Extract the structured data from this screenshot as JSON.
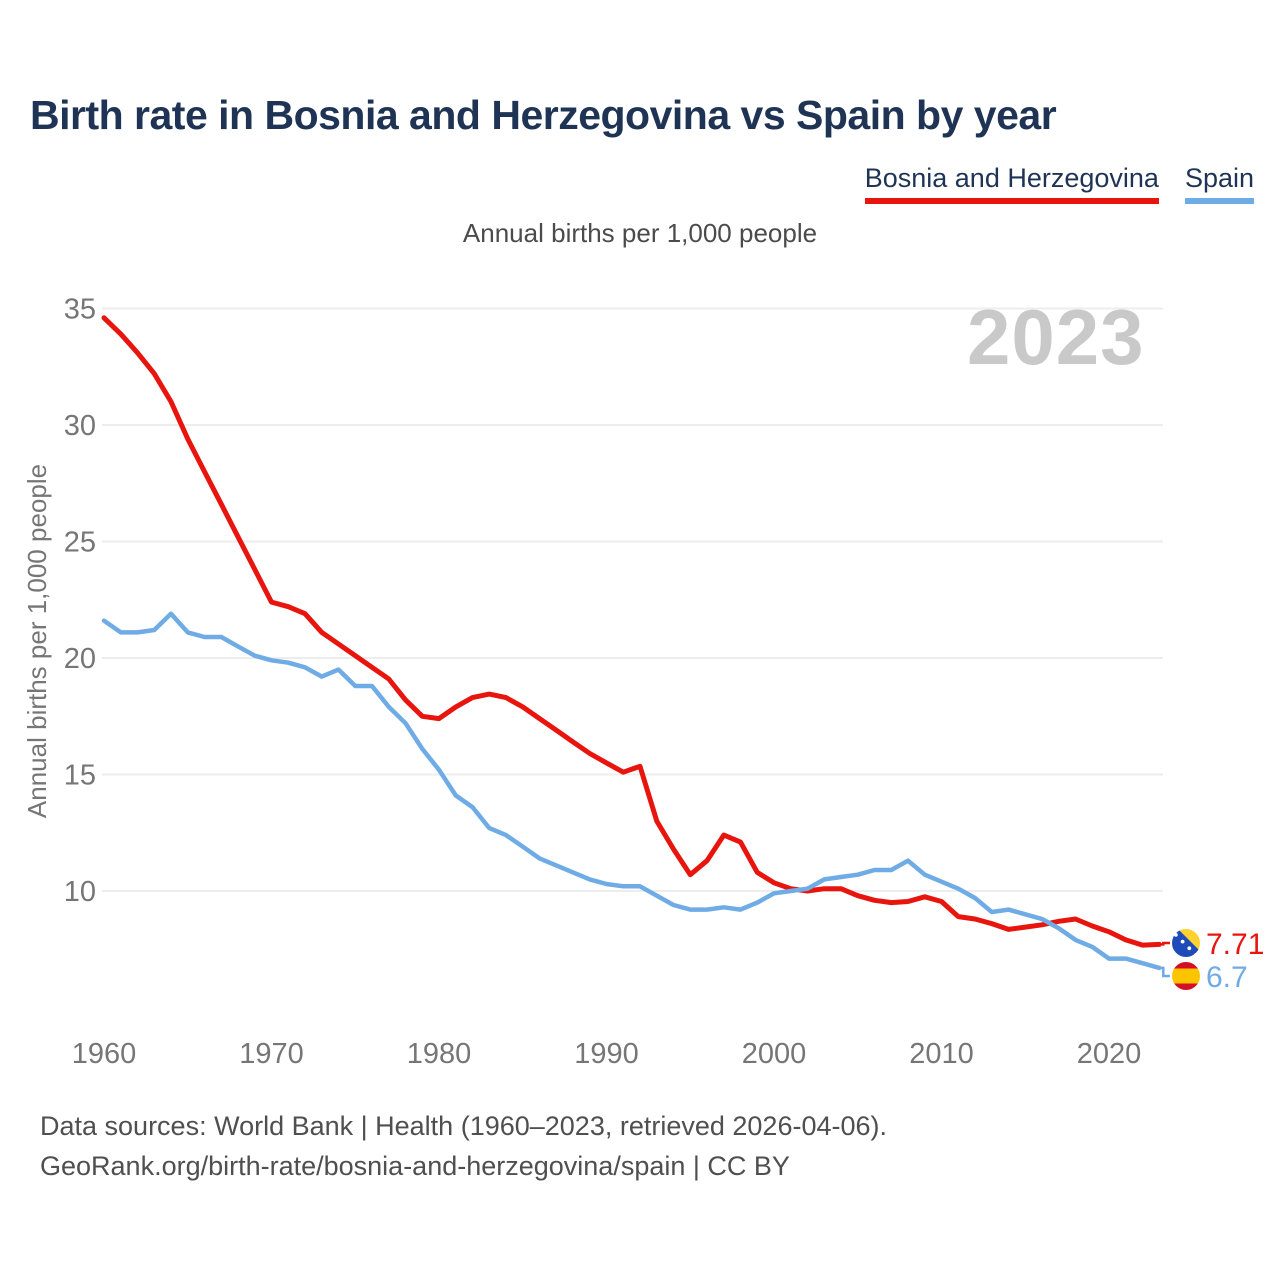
{
  "title": "Birth rate in Bosnia and Herzegovina vs Spain by year",
  "subtitle": "Annual births per 1,000 people",
  "watermark": "2023",
  "legend": [
    {
      "label": "Bosnia and Herzegovina",
      "color": "#e8150f"
    },
    {
      "label": "Spain",
      "color": "#6fabe5"
    }
  ],
  "footer": {
    "line1": "Data sources: World Bank | Health (1960–2023, retrieved 2026-04-06).",
    "line2": "GeoRank.org/birth-rate/bosnia-and-herzegovina/spain | CC BY"
  },
  "chart_data": {
    "type": "line",
    "title": "Birth rate in Bosnia and Herzegovina vs Spain by year",
    "ylabel": "Annual births per 1,000 people",
    "xlabel": "",
    "grid": "horizontal",
    "legend_position": "top-right",
    "x_ticks": [
      1960,
      1970,
      1980,
      1990,
      2000,
      2010,
      2020
    ],
    "y_ticks": [
      10,
      15,
      20,
      25,
      30,
      35
    ],
    "ylim": [
      6.5,
      35.5
    ],
    "xlim": [
      1960,
      2023
    ],
    "years": [
      1960,
      1961,
      1962,
      1963,
      1964,
      1965,
      1966,
      1967,
      1968,
      1969,
      1970,
      1971,
      1972,
      1973,
      1974,
      1975,
      1976,
      1977,
      1978,
      1979,
      1980,
      1981,
      1982,
      1983,
      1984,
      1985,
      1986,
      1987,
      1988,
      1989,
      1990,
      1991,
      1992,
      1993,
      1994,
      1995,
      1996,
      1997,
      1998,
      1999,
      2000,
      2001,
      2002,
      2003,
      2004,
      2005,
      2006,
      2007,
      2008,
      2009,
      2010,
      2011,
      2012,
      2013,
      2014,
      2015,
      2016,
      2017,
      2018,
      2019,
      2020,
      2021,
      2022,
      2023
    ],
    "series": [
      {
        "name": "Bosnia and Herzegovina",
        "color": "#e8150f",
        "end_label": "7.71",
        "flag": "bosnia-and-herzegovina",
        "values": [
          34.6,
          33.9,
          33.1,
          32.2,
          31.0,
          29.4,
          28.0,
          26.6,
          25.2,
          23.8,
          22.4,
          22.2,
          21.9,
          21.1,
          20.6,
          20.1,
          19.6,
          19.1,
          18.2,
          17.5,
          17.4,
          17.9,
          18.3,
          18.45,
          18.3,
          17.9,
          17.4,
          16.9,
          16.4,
          15.9,
          15.5,
          15.1,
          15.35,
          13.0,
          11.8,
          10.7,
          11.3,
          12.4,
          12.1,
          10.8,
          10.35,
          10.1,
          10.0,
          10.1,
          10.1,
          9.8,
          9.6,
          9.5,
          9.55,
          9.75,
          9.55,
          8.9,
          8.8,
          8.6,
          8.35,
          8.45,
          8.55,
          8.7,
          8.8,
          8.5,
          8.25,
          7.9,
          7.68,
          7.71
        ]
      },
      {
        "name": "Spain",
        "color": "#6fabe5",
        "end_label": "6.7",
        "flag": "spain",
        "values": [
          21.6,
          21.1,
          21.1,
          21.2,
          21.9,
          21.1,
          20.9,
          20.9,
          20.5,
          20.1,
          19.9,
          19.8,
          19.6,
          19.2,
          19.5,
          18.8,
          18.8,
          17.9,
          17.2,
          16.1,
          15.2,
          14.1,
          13.6,
          12.7,
          12.4,
          11.9,
          11.4,
          11.1,
          10.8,
          10.5,
          10.3,
          10.2,
          10.2,
          9.8,
          9.4,
          9.2,
          9.2,
          9.3,
          9.2,
          9.5,
          9.9,
          10.0,
          10.1,
          10.5,
          10.6,
          10.7,
          10.9,
          10.9,
          11.3,
          10.7,
          10.4,
          10.1,
          9.7,
          9.1,
          9.2,
          9.0,
          8.8,
          8.4,
          7.9,
          7.6,
          7.1,
          7.1,
          6.9,
          6.7
        ]
      }
    ]
  }
}
